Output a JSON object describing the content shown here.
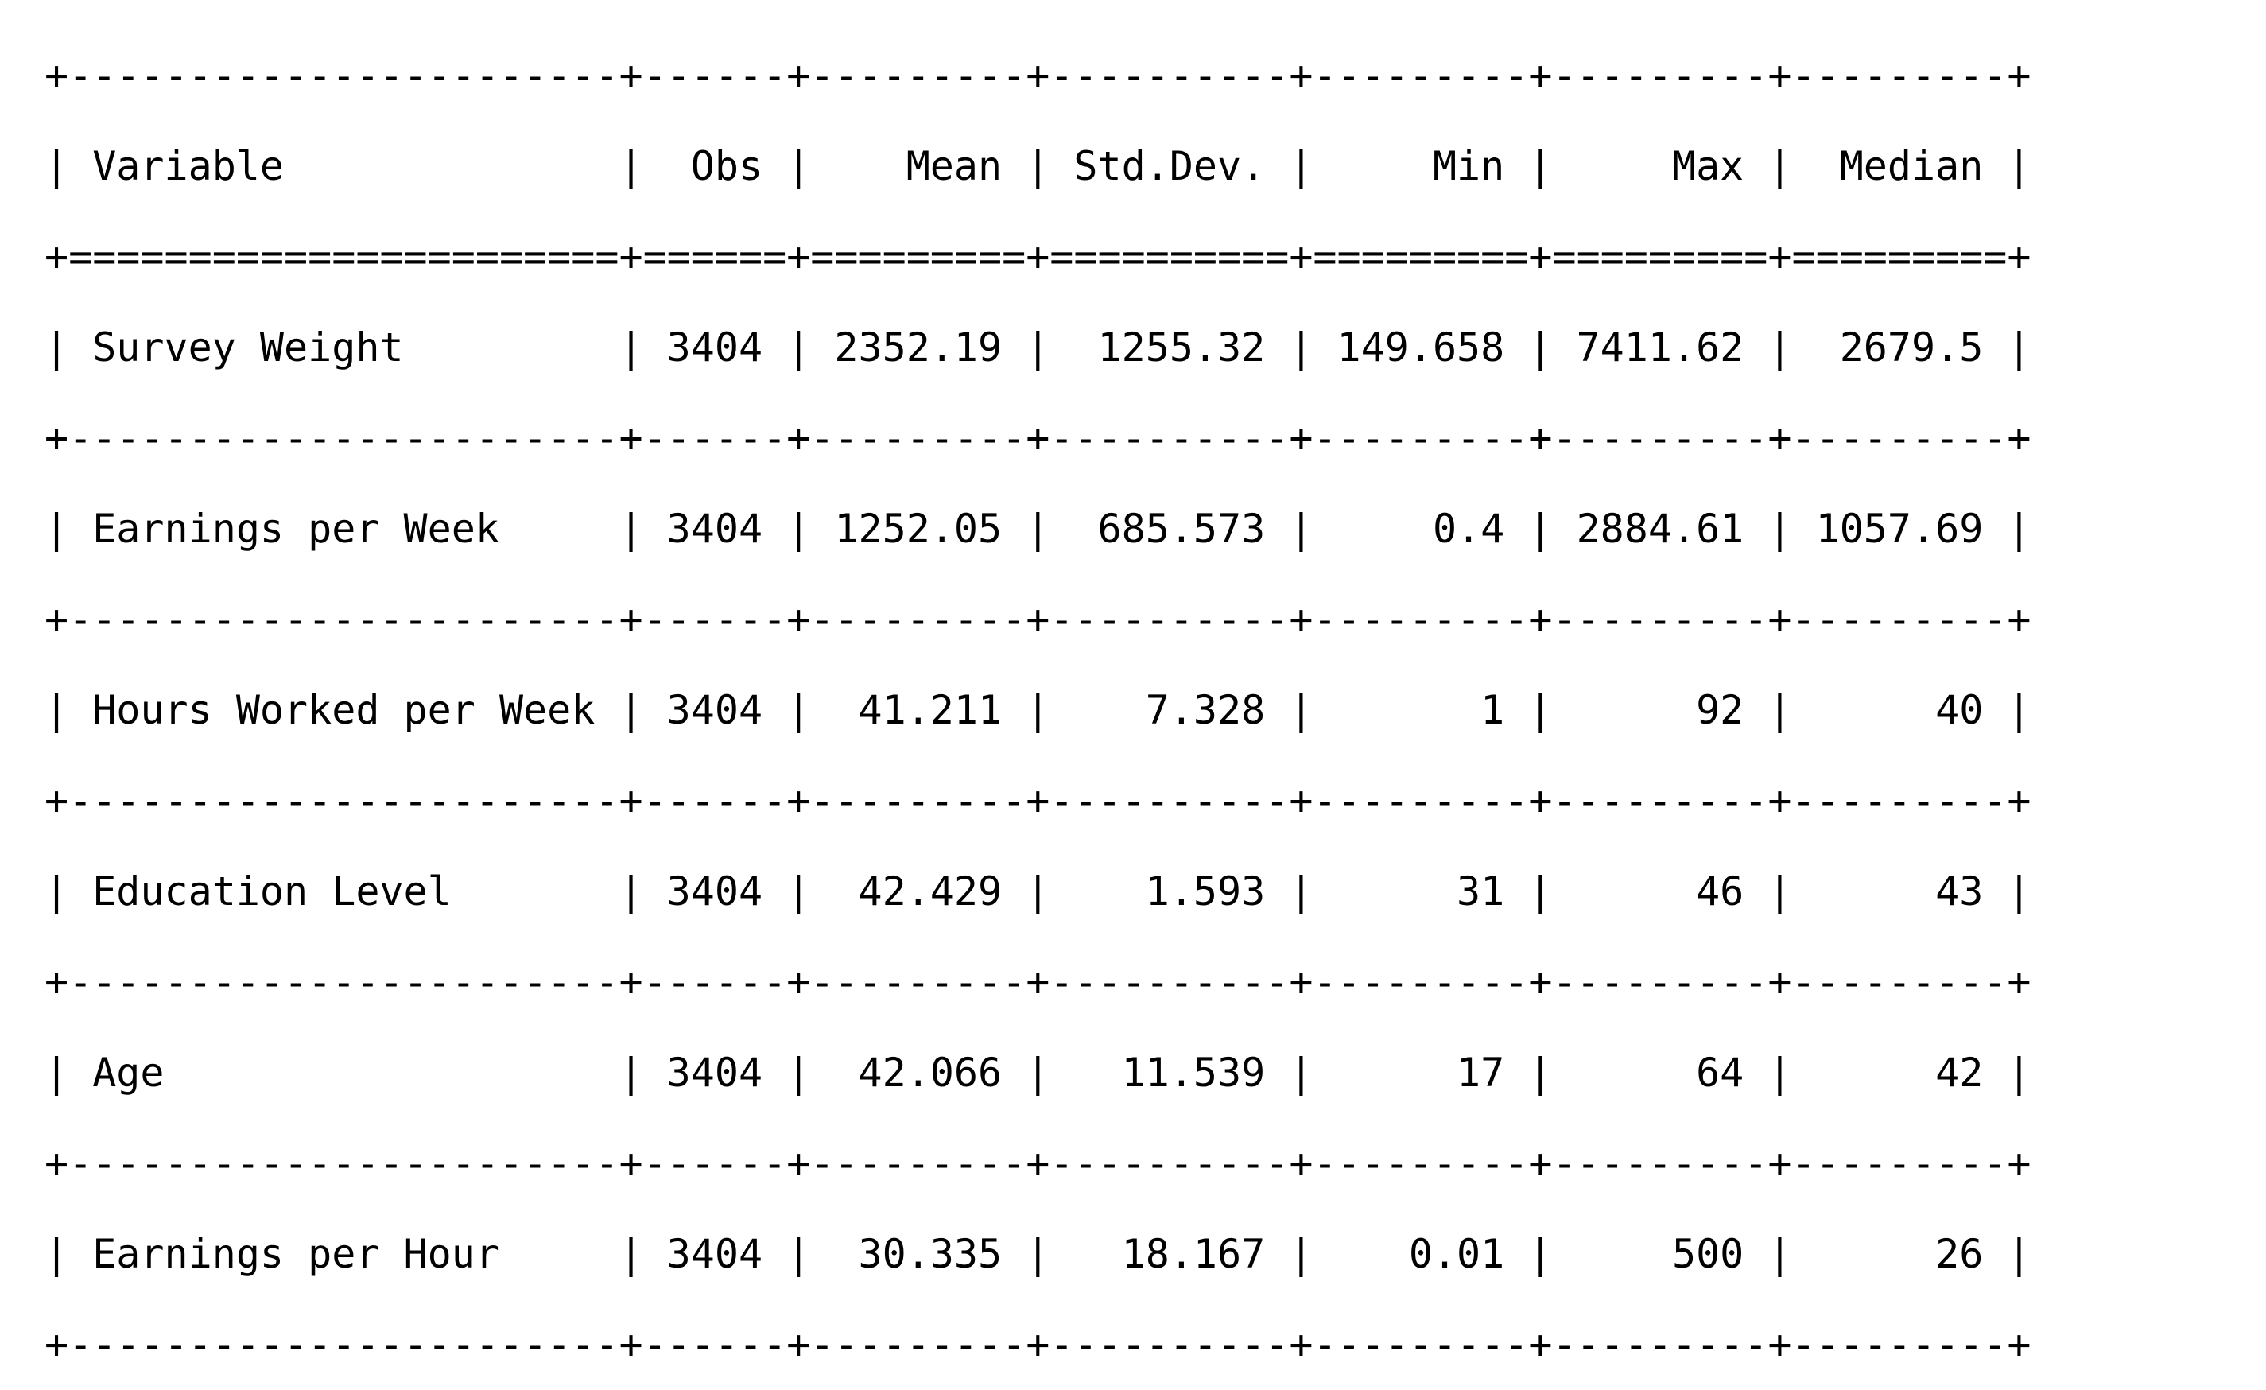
{
  "table": {
    "columns": [
      "Variable",
      "Obs",
      "Mean",
      "Std.Dev.",
      "Min",
      "Max",
      "Median"
    ],
    "rows": [
      [
        "Survey Weight",
        "3404",
        "2352.19",
        "1255.32",
        "149.658",
        "7411.62",
        "2679.5"
      ],
      [
        "Earnings per Week",
        "3404",
        "1252.05",
        "685.573",
        "0.4",
        "2884.61",
        "1057.69"
      ],
      [
        "Hours Worked per Week",
        "3404",
        "41.211",
        "7.328",
        "1",
        "92",
        "40"
      ],
      [
        "Education Level",
        "3404",
        "42.429",
        "1.593",
        "31",
        "46",
        "43"
      ],
      [
        "Age",
        "3404",
        "42.066",
        "11.539",
        "17",
        "64",
        "42"
      ],
      [
        "Earnings per Hour",
        "3404",
        "30.335",
        "18.167",
        "0.01",
        "500",
        "26"
      ]
    ]
  }
}
